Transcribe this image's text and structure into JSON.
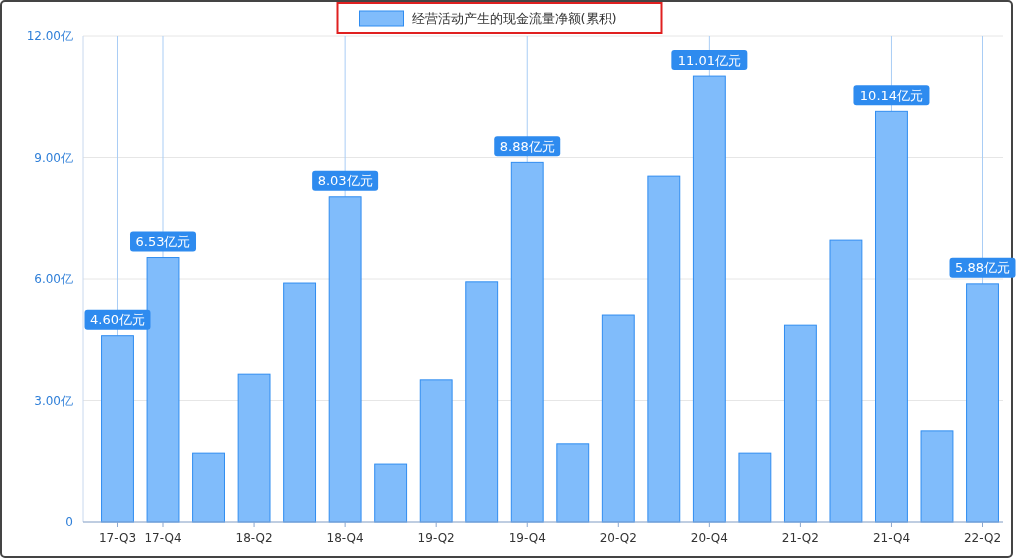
{
  "chart_data": {
    "type": "bar",
    "categories": [
      "17-Q3",
      "17-Q4",
      null,
      "18-Q2",
      null,
      "18-Q4",
      null,
      "19-Q2",
      null,
      "19-Q4",
      null,
      "20-Q2",
      null,
      "20-Q4",
      null,
      "21-Q2",
      null,
      "21-Q4",
      null,
      "22-Q2"
    ],
    "series": [
      {
        "name": "经营活动产生的现金流量净额(累积)",
        "color": "#80bcfb",
        "values": [
          4.6,
          6.53,
          1.7,
          3.65,
          5.9,
          8.03,
          1.43,
          3.51,
          5.93,
          8.88,
          1.93,
          5.11,
          8.54,
          11.01,
          1.7,
          4.86,
          6.96,
          10.14,
          2.25,
          5.88
        ],
        "value_labels": [
          "4.60亿元",
          "6.53亿元",
          null,
          null,
          null,
          "8.03亿元",
          null,
          null,
          null,
          "8.88亿元",
          null,
          null,
          null,
          "11.01亿元",
          null,
          null,
          null,
          "10.14亿元",
          null,
          "5.88亿元"
        ]
      }
    ],
    "ylim": [
      0,
      12
    ],
    "yticks": [
      0,
      {
        "value": 3,
        "label": "3.00亿"
      },
      {
        "value": 6,
        "label": "6.00亿"
      },
      {
        "value": 9,
        "label": "9.00亿"
      },
      {
        "value": 12,
        "label": "12.00亿"
      }
    ],
    "grid": "y",
    "legend": "top"
  }
}
